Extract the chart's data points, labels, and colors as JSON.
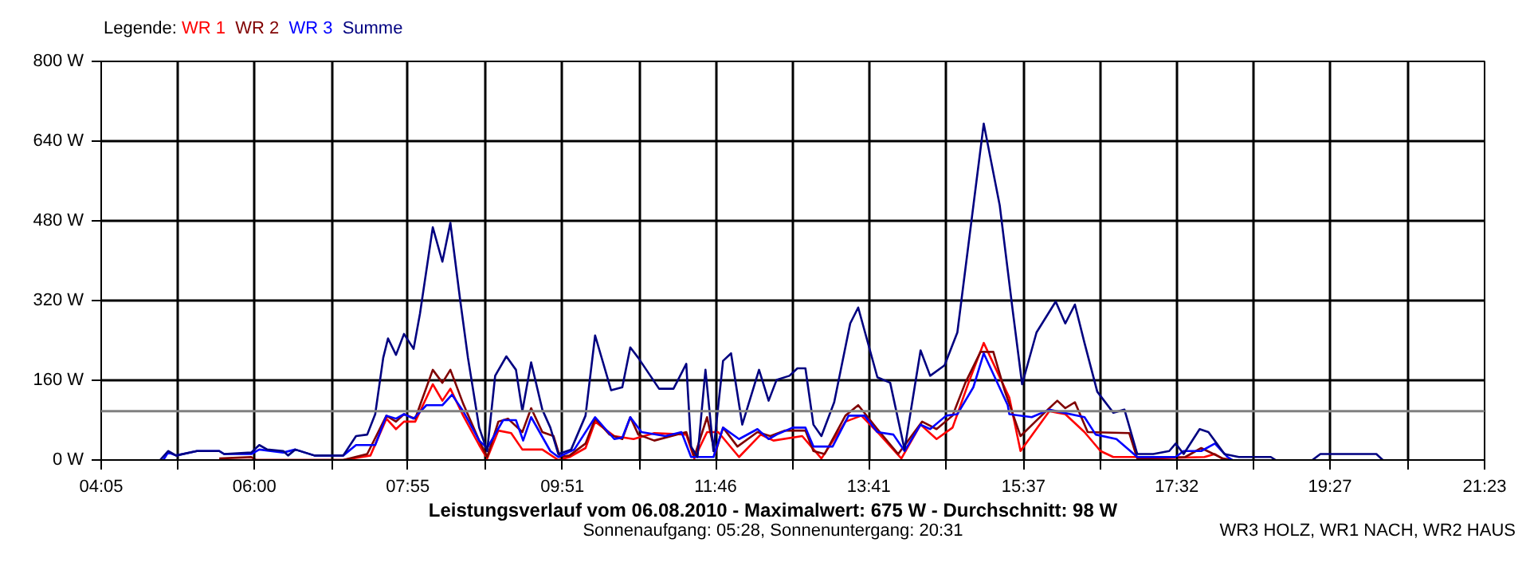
{
  "chart_data": {
    "type": "line",
    "title": "Leistungsverlauf vom 06.08.2010 - Maximalwert: 675 W - Durchschnitt: 98 W",
    "subtitle": "Sonnenaufgang: 05:28, Sonnenuntergang: 20:31",
    "annotations": [
      "WR3 HOLZ, WR1 NACH, WR2 HAUS"
    ],
    "legend_title": "Legende:",
    "legend": "top left",
    "grid": true,
    "xlim": [
      4.0833,
      21.3833
    ],
    "xticks": [
      {
        "value": 4.0833,
        "label": "04:05"
      },
      {
        "value": 5.0444,
        "label": null
      },
      {
        "value": 6.0,
        "label": "06:00"
      },
      {
        "value": 6.9667,
        "label": null
      },
      {
        "value": 7.9167,
        "label": "07:55"
      },
      {
        "value": 8.8889,
        "label": null
      },
      {
        "value": 9.85,
        "label": "09:51"
      },
      {
        "value": 10.8111,
        "label": null
      },
      {
        "value": 11.7667,
        "label": "11:46"
      },
      {
        "value": 12.7333,
        "label": null
      },
      {
        "value": 13.6833,
        "label": "13:41"
      },
      {
        "value": 14.6556,
        "label": null
      },
      {
        "value": 15.6167,
        "label": "15:37"
      },
      {
        "value": 16.5778,
        "label": null
      },
      {
        "value": 17.5333,
        "label": "17:32"
      },
      {
        "value": 18.5,
        "label": null
      },
      {
        "value": 19.45,
        "label": "19:27"
      },
      {
        "value": 20.4222,
        "label": null
      },
      {
        "value": 21.3833,
        "label": "21:23"
      }
    ],
    "ylim": [
      0,
      800
    ],
    "yticks": [
      {
        "value": 0,
        "label": "0 W"
      },
      {
        "value": 160,
        "label": "160 W"
      },
      {
        "value": 320,
        "label": "320 W"
      },
      {
        "value": 480,
        "label": "480 W"
      },
      {
        "value": 640,
        "label": "640 W"
      },
      {
        "value": 800,
        "label": "800 W"
      }
    ],
    "ref_lines": [
      {
        "axis": "y",
        "value": 98,
        "color": "#808080"
      }
    ],
    "series": [
      {
        "name": "WR 1",
        "color": "#ff0000",
        "x": [
          5.56,
          7.11,
          7.45,
          7.65,
          7.77,
          7.87,
          8.01,
          8.23,
          8.35,
          8.45,
          8.61,
          8.81,
          8.91,
          9.05,
          9.21,
          9.35,
          9.6,
          9.8,
          9.94,
          10.14,
          10.26,
          10.5,
          10.74,
          11.0,
          11.4,
          11.5,
          11.66,
          11.8,
          12.06,
          12.33,
          12.49,
          12.85,
          13.09,
          13.39,
          13.59,
          13.79,
          14.09,
          14.33,
          14.53,
          14.73,
          14.93,
          15.12,
          15.44,
          15.58,
          15.94,
          16.04,
          16.14,
          16.38,
          16.58,
          16.74,
          17.04,
          17.18,
          17.88,
          18.01,
          18.13
        ],
        "values": [
          0,
          0,
          9,
          83,
          62,
          77,
          77,
          152,
          119,
          143,
          89,
          30,
          3,
          59,
          54,
          21,
          21,
          0,
          6,
          24,
          77,
          48,
          42,
          54,
          51,
          3,
          56,
          56,
          6,
          51,
          39,
          48,
          3,
          77,
          89,
          56,
          3,
          71,
          42,
          65,
          155,
          235,
          125,
          18,
          98,
          95,
          92,
          56,
          18,
          6,
          6,
          3,
          6,
          12,
          0
        ]
      },
      {
        "name": "WR 2",
        "color": "#800000",
        "x": [
          5.56,
          5.96,
          6.02,
          7.11,
          7.41,
          7.65,
          7.77,
          7.87,
          8.01,
          8.23,
          8.35,
          8.45,
          8.61,
          8.81,
          8.91,
          9.05,
          9.17,
          9.35,
          9.46,
          9.6,
          9.74,
          9.82,
          9.94,
          10.14,
          10.26,
          10.44,
          10.6,
          10.7,
          10.8,
          11.0,
          11.4,
          11.5,
          11.66,
          11.76,
          11.86,
          12.04,
          12.29,
          12.45,
          12.63,
          12.89,
          12.99,
          13.13,
          13.39,
          13.55,
          13.79,
          14.05,
          14.35,
          14.53,
          14.73,
          14.89,
          15.08,
          15.24,
          15.38,
          15.58,
          15.88,
          16.04,
          16.14,
          16.26,
          16.42,
          16.94,
          17.04,
          17.64,
          17.84,
          18.11,
          18.23
        ],
        "values": [
          3,
          6,
          0,
          0,
          12,
          89,
          77,
          92,
          83,
          181,
          155,
          181,
          113,
          39,
          6,
          77,
          83,
          56,
          104,
          56,
          48,
          6,
          9,
          33,
          83,
          51,
          42,
          86,
          51,
          39,
          56,
          6,
          86,
          12,
          65,
          27,
          56,
          48,
          59,
          59,
          18,
          12,
          89,
          110,
          62,
          12,
          77,
          62,
          89,
          155,
          217,
          217,
          140,
          48,
          95,
          119,
          104,
          116,
          56,
          54,
          3,
          6,
          24,
          3,
          0
        ]
      },
      {
        "name": "WR 3",
        "color": "#0000ff",
        "x": [
          4.86,
          4.92,
          5.02,
          5.28,
          5.56,
          5.62,
          5.96,
          6.06,
          6.36,
          6.51,
          6.75,
          7.11,
          7.27,
          7.51,
          7.65,
          7.77,
          7.87,
          7.99,
          8.15,
          8.35,
          8.47,
          8.61,
          8.81,
          8.91,
          9.11,
          9.27,
          9.36,
          9.46,
          9.7,
          9.8,
          10.0,
          10.26,
          10.5,
          10.6,
          10.7,
          10.84,
          11.14,
          11.34,
          11.46,
          11.74,
          11.86,
          12.06,
          12.29,
          12.43,
          12.53,
          12.73,
          12.89,
          12.99,
          13.23,
          13.43,
          13.63,
          13.79,
          13.99,
          14.13,
          14.33,
          14.45,
          14.65,
          14.79,
          14.99,
          15.12,
          15.42,
          15.44,
          15.72,
          15.94,
          16.38,
          16.52,
          16.78,
          17.04,
          17.52,
          17.62,
          17.84,
          18.01,
          18.17,
          18.23
        ],
        "values": [
          0,
          15,
          9,
          18,
          18,
          12,
          12,
          21,
          15,
          21,
          9,
          9,
          30,
          30,
          89,
          83,
          92,
          83,
          110,
          110,
          131,
          98,
          39,
          24,
          80,
          80,
          39,
          86,
          18,
          6,
          21,
          86,
          42,
          45,
          86,
          56,
          48,
          56,
          6,
          6,
          65,
          42,
          62,
          42,
          51,
          65,
          65,
          27,
          27,
          89,
          89,
          56,
          51,
          18,
          71,
          62,
          89,
          92,
          146,
          214,
          110,
          92,
          86,
          101,
          86,
          51,
          42,
          6,
          6,
          18,
          18,
          33,
          6,
          0
        ]
      },
      {
        "name": "Summe",
        "color": "#000080",
        "x": [
          4.82,
          4.92,
          5.02,
          5.28,
          5.56,
          5.62,
          5.96,
          6.06,
          6.16,
          6.36,
          6.42,
          6.51,
          6.75,
          7.11,
          7.27,
          7.41,
          7.51,
          7.61,
          7.67,
          7.77,
          7.87,
          7.99,
          8.07,
          8.23,
          8.35,
          8.45,
          8.57,
          8.67,
          8.81,
          8.91,
          9.01,
          9.15,
          9.27,
          9.35,
          9.46,
          9.6,
          9.7,
          9.8,
          9.96,
          10.14,
          10.26,
          10.46,
          10.6,
          10.7,
          10.8,
          11.06,
          11.24,
          11.4,
          11.46,
          11.54,
          11.64,
          11.74,
          11.86,
          11.96,
          12.1,
          12.31,
          12.43,
          12.53,
          12.69,
          12.79,
          12.89,
          12.99,
          13.09,
          13.25,
          13.45,
          13.55,
          13.79,
          13.95,
          14.13,
          14.33,
          14.45,
          14.63,
          14.79,
          15.12,
          15.32,
          15.48,
          15.6,
          15.78,
          16.02,
          16.14,
          16.26,
          16.38,
          16.54,
          16.74,
          16.88,
          17.04,
          17.24,
          17.44,
          17.52,
          17.62,
          17.82,
          17.93,
          18.13,
          18.31,
          18.71,
          18.77,
          19.0,
          19.23,
          19.33,
          20.03,
          20.11
        ],
        "values": [
          0,
          18,
          9,
          18,
          18,
          12,
          15,
          30,
          21,
          18,
          9,
          21,
          9,
          9,
          48,
          51,
          92,
          205,
          244,
          211,
          253,
          223,
          294,
          467,
          398,
          476,
          324,
          205,
          65,
          18,
          169,
          208,
          181,
          98,
          196,
          101,
          65,
          12,
          21,
          89,
          250,
          140,
          146,
          226,
          205,
          143,
          143,
          193,
          27,
          6,
          181,
          18,
          199,
          214,
          71,
          181,
          119,
          161,
          169,
          184,
          184,
          71,
          48,
          116,
          274,
          306,
          166,
          155,
          21,
          220,
          169,
          190,
          256,
          675,
          511,
          303,
          152,
          256,
          318,
          274,
          312,
          235,
          137,
          95,
          101,
          12,
          12,
          18,
          33,
          12,
          62,
          56,
          12,
          6,
          6,
          0,
          null,
          0,
          12,
          12,
          0
        ]
      }
    ]
  }
}
